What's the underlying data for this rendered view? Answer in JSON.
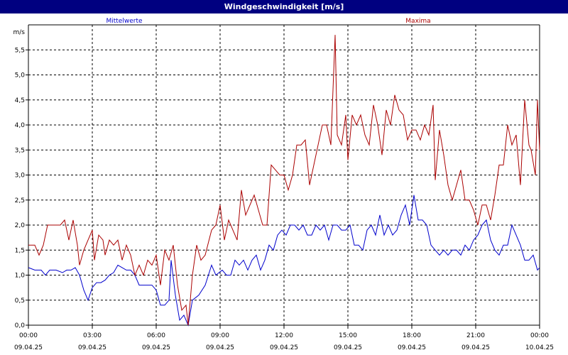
{
  "window": {
    "title": "Windgeschwindigkeit [m/s]"
  },
  "colors": {
    "mean": "#0000cc",
    "max": "#aa0000",
    "titlebar": "#000080"
  },
  "chart_data": {
    "type": "line",
    "title": "Windgeschwindigkeit [m/s]",
    "ylabel": "m/s",
    "ylim": [
      0,
      6
    ],
    "xlim_hours": [
      0,
      24
    ],
    "grid": true,
    "yticks": [
      {
        "v": 0.0,
        "label": "0,0"
      },
      {
        "v": 0.5,
        "label": "0,5"
      },
      {
        "v": 1.0,
        "label": "1,0"
      },
      {
        "v": 1.5,
        "label": "1,5"
      },
      {
        "v": 2.0,
        "label": "2,0"
      },
      {
        "v": 2.5,
        "label": "2,5"
      },
      {
        "v": 3.0,
        "label": "3,0"
      },
      {
        "v": 3.5,
        "label": "3,5"
      },
      {
        "v": 4.0,
        "label": "4,0"
      },
      {
        "v": 4.5,
        "label": "4,5"
      },
      {
        "v": 5.0,
        "label": "5,0"
      },
      {
        "v": 5.5,
        "label": "5,5"
      }
    ],
    "xticks": [
      {
        "h": 0,
        "time": "00:00",
        "date": "09.04.25"
      },
      {
        "h": 3,
        "time": "03:00",
        "date": "09.04.25"
      },
      {
        "h": 6,
        "time": "06:00",
        "date": "09.04.25"
      },
      {
        "h": 9,
        "time": "09:00",
        "date": "09.04.25"
      },
      {
        "h": 12,
        "time": "12:00",
        "date": "09.04.25"
      },
      {
        "h": 15,
        "time": "15:00",
        "date": "09.04.25"
      },
      {
        "h": 18,
        "time": "18:00",
        "date": "09.04.25"
      },
      {
        "h": 21,
        "time": "21:00",
        "date": "09.04.25"
      },
      {
        "h": 24,
        "time": "00:00",
        "date": "10.04.25"
      }
    ],
    "series": [
      {
        "name": "Mittelwerte",
        "points": [
          [
            0.0,
            1.15
          ],
          [
            0.3,
            1.1
          ],
          [
            0.6,
            1.1
          ],
          [
            0.8,
            1.0
          ],
          [
            1.0,
            1.1
          ],
          [
            1.3,
            1.1
          ],
          [
            1.6,
            1.05
          ],
          [
            1.8,
            1.1
          ],
          [
            2.0,
            1.1
          ],
          [
            2.2,
            1.15
          ],
          [
            2.4,
            1.0
          ],
          [
            2.6,
            0.7
          ],
          [
            2.8,
            0.5
          ],
          [
            3.0,
            0.75
          ],
          [
            3.2,
            0.85
          ],
          [
            3.4,
            0.85
          ],
          [
            3.6,
            0.9
          ],
          [
            3.8,
            1.0
          ],
          [
            4.0,
            1.05
          ],
          [
            4.2,
            1.2
          ],
          [
            4.4,
            1.15
          ],
          [
            4.6,
            1.1
          ],
          [
            4.8,
            1.1
          ],
          [
            5.0,
            1.0
          ],
          [
            5.2,
            0.8
          ],
          [
            5.5,
            0.8
          ],
          [
            5.8,
            0.8
          ],
          [
            6.0,
            0.7
          ],
          [
            6.2,
            0.4
          ],
          [
            6.4,
            0.4
          ],
          [
            6.6,
            0.5
          ],
          [
            6.7,
            1.3
          ],
          [
            6.9,
            0.6
          ],
          [
            7.1,
            0.1
          ],
          [
            7.3,
            0.2
          ],
          [
            7.5,
            0.0
          ],
          [
            7.7,
            0.5
          ],
          [
            8.0,
            0.6
          ],
          [
            8.3,
            0.8
          ],
          [
            8.6,
            1.2
          ],
          [
            8.8,
            1.0
          ],
          [
            9.1,
            1.1
          ],
          [
            9.3,
            1.0
          ],
          [
            9.5,
            1.0
          ],
          [
            9.7,
            1.3
          ],
          [
            9.9,
            1.2
          ],
          [
            10.1,
            1.3
          ],
          [
            10.3,
            1.1
          ],
          [
            10.5,
            1.3
          ],
          [
            10.7,
            1.4
          ],
          [
            10.9,
            1.1
          ],
          [
            11.1,
            1.3
          ],
          [
            11.3,
            1.6
          ],
          [
            11.5,
            1.5
          ],
          [
            11.7,
            1.8
          ],
          [
            11.9,
            1.9
          ],
          [
            12.1,
            1.8
          ],
          [
            12.3,
            2.0
          ],
          [
            12.5,
            2.0
          ],
          [
            12.7,
            1.9
          ],
          [
            12.9,
            2.0
          ],
          [
            13.1,
            1.8
          ],
          [
            13.3,
            1.8
          ],
          [
            13.5,
            2.0
          ],
          [
            13.7,
            1.9
          ],
          [
            13.9,
            2.0
          ],
          [
            14.1,
            1.7
          ],
          [
            14.3,
            2.0
          ],
          [
            14.5,
            2.0
          ],
          [
            14.7,
            1.9
          ],
          [
            14.9,
            1.9
          ],
          [
            15.1,
            2.0
          ],
          [
            15.3,
            1.6
          ],
          [
            15.5,
            1.6
          ],
          [
            15.7,
            1.5
          ],
          [
            15.9,
            1.9
          ],
          [
            16.1,
            2.0
          ],
          [
            16.3,
            1.8
          ],
          [
            16.5,
            2.2
          ],
          [
            16.7,
            1.8
          ],
          [
            16.9,
            2.0
          ],
          [
            17.1,
            1.8
          ],
          [
            17.3,
            1.9
          ],
          [
            17.5,
            2.2
          ],
          [
            17.7,
            2.4
          ],
          [
            17.9,
            2.0
          ],
          [
            18.1,
            2.6
          ],
          [
            18.3,
            2.1
          ],
          [
            18.5,
            2.1
          ],
          [
            18.7,
            2.0
          ],
          [
            18.9,
            1.6
          ],
          [
            19.1,
            1.5
          ],
          [
            19.3,
            1.4
          ],
          [
            19.5,
            1.5
          ],
          [
            19.7,
            1.4
          ],
          [
            19.9,
            1.5
          ],
          [
            20.1,
            1.5
          ],
          [
            20.3,
            1.4
          ],
          [
            20.5,
            1.6
          ],
          [
            20.7,
            1.5
          ],
          [
            20.9,
            1.7
          ],
          [
            21.1,
            1.8
          ],
          [
            21.3,
            2.0
          ],
          [
            21.5,
            2.1
          ],
          [
            21.7,
            1.7
          ],
          [
            21.9,
            1.5
          ],
          [
            22.1,
            1.4
          ],
          [
            22.3,
            1.6
          ],
          [
            22.5,
            1.6
          ],
          [
            22.7,
            2.0
          ],
          [
            22.9,
            1.8
          ],
          [
            23.1,
            1.6
          ],
          [
            23.3,
            1.3
          ],
          [
            23.5,
            1.3
          ],
          [
            23.7,
            1.4
          ],
          [
            23.9,
            1.1
          ],
          [
            24.0,
            1.15
          ]
        ]
      },
      {
        "name": "Maxima",
        "points": [
          [
            0.0,
            1.6
          ],
          [
            0.3,
            1.6
          ],
          [
            0.5,
            1.4
          ],
          [
            0.7,
            1.6
          ],
          [
            0.9,
            2.0
          ],
          [
            1.2,
            2.0
          ],
          [
            1.5,
            2.0
          ],
          [
            1.7,
            2.1
          ],
          [
            1.9,
            1.7
          ],
          [
            2.1,
            2.1
          ],
          [
            2.3,
            1.6
          ],
          [
            2.4,
            1.2
          ],
          [
            2.6,
            1.5
          ],
          [
            2.8,
            1.7
          ],
          [
            3.0,
            1.9
          ],
          [
            3.1,
            1.3
          ],
          [
            3.3,
            1.8
          ],
          [
            3.5,
            1.7
          ],
          [
            3.6,
            1.4
          ],
          [
            3.8,
            1.7
          ],
          [
            4.0,
            1.6
          ],
          [
            4.2,
            1.7
          ],
          [
            4.4,
            1.3
          ],
          [
            4.6,
            1.6
          ],
          [
            4.8,
            1.4
          ],
          [
            5.0,
            1.0
          ],
          [
            5.2,
            1.2
          ],
          [
            5.4,
            1.0
          ],
          [
            5.6,
            1.3
          ],
          [
            5.8,
            1.2
          ],
          [
            6.0,
            1.4
          ],
          [
            6.2,
            0.8
          ],
          [
            6.4,
            1.5
          ],
          [
            6.6,
            1.3
          ],
          [
            6.8,
            1.6
          ],
          [
            7.0,
            0.8
          ],
          [
            7.2,
            0.3
          ],
          [
            7.4,
            0.4
          ],
          [
            7.5,
            0.0
          ],
          [
            7.7,
            1.0
          ],
          [
            7.9,
            1.6
          ],
          [
            8.1,
            1.3
          ],
          [
            8.3,
            1.4
          ],
          [
            8.6,
            1.9
          ],
          [
            8.8,
            2.0
          ],
          [
            9.0,
            2.4
          ],
          [
            9.2,
            1.7
          ],
          [
            9.4,
            2.1
          ],
          [
            9.6,
            1.9
          ],
          [
            9.8,
            1.7
          ],
          [
            10.0,
            2.7
          ],
          [
            10.2,
            2.2
          ],
          [
            10.4,
            2.4
          ],
          [
            10.6,
            2.6
          ],
          [
            10.8,
            2.3
          ],
          [
            11.0,
            2.0
          ],
          [
            11.2,
            2.0
          ],
          [
            11.4,
            3.2
          ],
          [
            11.6,
            3.1
          ],
          [
            11.8,
            3.0
          ],
          [
            12.0,
            3.0
          ],
          [
            12.2,
            2.7
          ],
          [
            12.4,
            3.0
          ],
          [
            12.6,
            3.6
          ],
          [
            12.8,
            3.6
          ],
          [
            13.0,
            3.7
          ],
          [
            13.2,
            2.8
          ],
          [
            13.4,
            3.2
          ],
          [
            13.6,
            3.6
          ],
          [
            13.8,
            4.0
          ],
          [
            14.0,
            4.0
          ],
          [
            14.2,
            3.6
          ],
          [
            14.4,
            5.8
          ],
          [
            14.5,
            3.8
          ],
          [
            14.7,
            3.6
          ],
          [
            14.9,
            4.2
          ],
          [
            15.0,
            3.3
          ],
          [
            15.2,
            4.2
          ],
          [
            15.4,
            4.0
          ],
          [
            15.6,
            4.2
          ],
          [
            15.8,
            3.8
          ],
          [
            16.0,
            3.6
          ],
          [
            16.2,
            4.4
          ],
          [
            16.4,
            4.0
          ],
          [
            16.6,
            3.4
          ],
          [
            16.8,
            4.3
          ],
          [
            17.0,
            4.0
          ],
          [
            17.2,
            4.6
          ],
          [
            17.4,
            4.3
          ],
          [
            17.6,
            4.2
          ],
          [
            17.8,
            3.7
          ],
          [
            18.0,
            3.9
          ],
          [
            18.2,
            3.9
          ],
          [
            18.4,
            3.7
          ],
          [
            18.6,
            4.0
          ],
          [
            18.8,
            3.8
          ],
          [
            19.0,
            4.4
          ],
          [
            19.1,
            2.9
          ],
          [
            19.3,
            3.9
          ],
          [
            19.5,
            3.4
          ],
          [
            19.7,
            2.8
          ],
          [
            19.9,
            2.5
          ],
          [
            20.1,
            2.8
          ],
          [
            20.3,
            3.1
          ],
          [
            20.5,
            2.5
          ],
          [
            20.7,
            2.5
          ],
          [
            20.9,
            2.3
          ],
          [
            21.1,
            2.0
          ],
          [
            21.3,
            2.4
          ],
          [
            21.5,
            2.4
          ],
          [
            21.7,
            2.1
          ],
          [
            21.9,
            2.6
          ],
          [
            22.1,
            3.2
          ],
          [
            22.3,
            3.2
          ],
          [
            22.5,
            4.0
          ],
          [
            22.7,
            3.6
          ],
          [
            22.9,
            3.8
          ],
          [
            23.1,
            2.8
          ],
          [
            23.3,
            4.5
          ],
          [
            23.5,
            3.6
          ],
          [
            23.6,
            3.5
          ],
          [
            23.8,
            3.0
          ],
          [
            23.9,
            4.5
          ],
          [
            24.0,
            3.5
          ]
        ]
      }
    ]
  }
}
